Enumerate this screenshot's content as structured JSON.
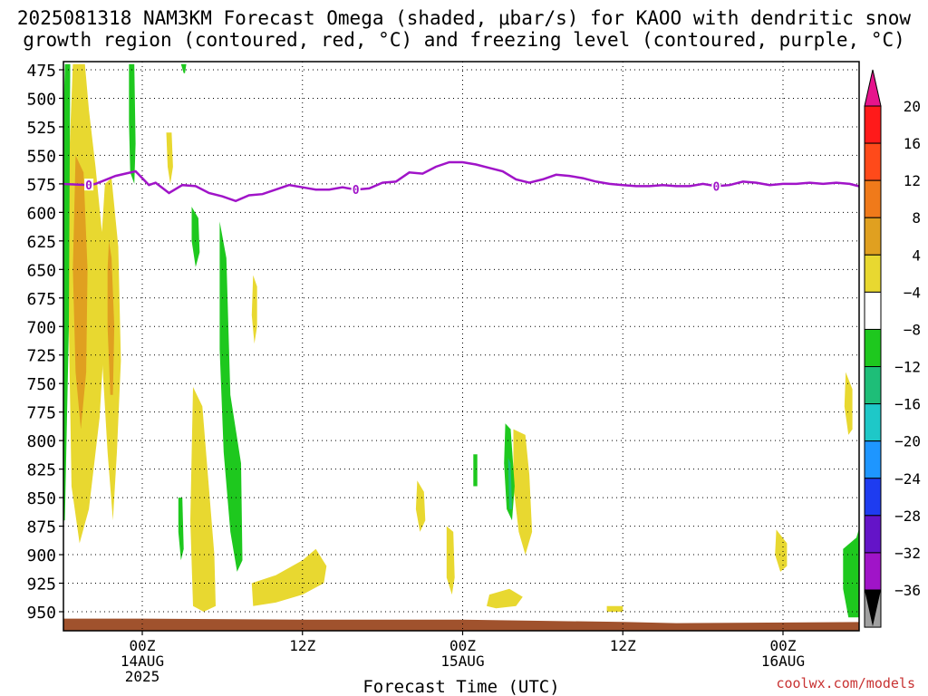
{
  "title_line1": "2025081318 NAM3KM Forecast Omega (shaded, μbar/s) for KAOO with dendritic snow",
  "title_line2": "growth region (contoured, red, °C) and freezing level (contoured, purple, °C)",
  "credit": "coolwx.com/models",
  "chart_data": {
    "type": "heatmap",
    "title": "2025081318 NAM3KM Forecast Omega (shaded, μbar/s) for KAOO with dendritic snow growth region (contoured, red, °C) and freezing level (contoured, purple, °C)",
    "xlabel": "Forecast Time (UTC)",
    "ylabel": "",
    "x_range_hours": [
      -6,
      54
    ],
    "y_range_hPa": [
      470,
      965
    ],
    "y_ticks": [
      475,
      500,
      525,
      550,
      575,
      600,
      625,
      650,
      675,
      700,
      725,
      750,
      775,
      800,
      825,
      850,
      875,
      900,
      925,
      950
    ],
    "x_ticks": [
      {
        "hour": 0,
        "lines": [
          "00Z",
          "14AUG",
          "2025"
        ]
      },
      {
        "hour": 12,
        "lines": [
          "12Z"
        ]
      },
      {
        "hour": 24,
        "lines": [
          "00Z",
          "15AUG"
        ]
      },
      {
        "hour": 36,
        "lines": [
          "12Z"
        ]
      },
      {
        "hour": 48,
        "lines": [
          "00Z",
          "16AUG"
        ]
      }
    ],
    "grid": true,
    "colorbar": {
      "labels": [
        "20",
        "16",
        "12",
        "8",
        "4",
        "−4",
        "−8",
        "−12",
        "−16",
        "−20",
        "−24",
        "−28",
        "−32",
        "−36"
      ],
      "colors": [
        "#ff1a1a",
        "#ff4a1a",
        "#f07a1a",
        "#e0a020",
        "#e8d830",
        "#ffffff",
        "#1ec81e",
        "#1ebe78",
        "#1ec8c8",
        "#1e96ff",
        "#1e3cf0",
        "#6414c8",
        "#a014c8",
        "#a0a0a0"
      ],
      "top_arrow_color": "#e6148c",
      "bottom_arrow_color": "#000000"
    },
    "freezing_level": {
      "color": "#a014c8",
      "contour_label": "0",
      "points": [
        [
          -6,
          575
        ],
        [
          -4,
          576
        ],
        [
          -3.5,
          575
        ],
        [
          -2,
          568
        ],
        [
          -0.5,
          564
        ],
        [
          0,
          570
        ],
        [
          0.5,
          576
        ],
        [
          1,
          574
        ],
        [
          2,
          583
        ],
        [
          3,
          576
        ],
        [
          4,
          577
        ],
        [
          5,
          583
        ],
        [
          6,
          586
        ],
        [
          7,
          590
        ],
        [
          8,
          585
        ],
        [
          9,
          584
        ],
        [
          10,
          580
        ],
        [
          11,
          576
        ],
        [
          12,
          578
        ],
        [
          13,
          580
        ],
        [
          14,
          580
        ],
        [
          15,
          578
        ],
        [
          16,
          580
        ],
        [
          17,
          579
        ],
        [
          18,
          574
        ],
        [
          19,
          573
        ],
        [
          20,
          565
        ],
        [
          21,
          566
        ],
        [
          22,
          560
        ],
        [
          23,
          556
        ],
        [
          24,
          556
        ],
        [
          25,
          558
        ],
        [
          26,
          561
        ],
        [
          27,
          564
        ],
        [
          28,
          571
        ],
        [
          29,
          574
        ],
        [
          30,
          571
        ],
        [
          31,
          567
        ],
        [
          32,
          568
        ],
        [
          33,
          570
        ],
        [
          34,
          573
        ],
        [
          35,
          575
        ],
        [
          36,
          576
        ],
        [
          37,
          577
        ],
        [
          38,
          577
        ],
        [
          39,
          576
        ],
        [
          40,
          577
        ],
        [
          41,
          577
        ],
        [
          42,
          575
        ],
        [
          43,
          577
        ],
        [
          44,
          576
        ],
        [
          45,
          573
        ],
        [
          46,
          574
        ],
        [
          47,
          576
        ],
        [
          48,
          575
        ],
        [
          49,
          575
        ],
        [
          50,
          574
        ],
        [
          51,
          575
        ],
        [
          52,
          574
        ],
        [
          53,
          575
        ],
        [
          54,
          578
        ]
      ]
    },
    "ground_color": "#a0522d",
    "ground_hPa": [
      [
        -6,
        956
      ],
      [
        0,
        956
      ],
      [
        12,
        957
      ],
      [
        24,
        957
      ],
      [
        36,
        959
      ],
      [
        40,
        960
      ],
      [
        54,
        959
      ]
    ],
    "omega_regions": [
      {
        "band": "4 to 8",
        "color": "#e8d830",
        "points": [
          [
            -5.2,
            470
          ],
          [
            -4.3,
            470
          ],
          [
            -4,
            510
          ],
          [
            -3.5,
            560
          ],
          [
            -3,
            620
          ],
          [
            -2.8,
            700
          ],
          [
            -3.2,
            780
          ],
          [
            -4,
            860
          ],
          [
            -4.7,
            890
          ],
          [
            -5.3,
            840
          ],
          [
            -5.5,
            700
          ],
          [
            -5.5,
            560
          ]
        ]
      },
      {
        "band": "8 to 12",
        "color": "#e0a020",
        "points": [
          [
            -5,
            550
          ],
          [
            -4.4,
            565
          ],
          [
            -4.1,
            650
          ],
          [
            -4.2,
            740
          ],
          [
            -4.6,
            790
          ],
          [
            -5,
            740
          ],
          [
            -5.2,
            650
          ]
        ]
      },
      {
        "band": "4 to 8",
        "color": "#e8d830",
        "points": [
          [
            -2.8,
            575
          ],
          [
            -2.3,
            570
          ],
          [
            -1.8,
            630
          ],
          [
            -1.6,
            730
          ],
          [
            -1.9,
            810
          ],
          [
            -2.2,
            870
          ],
          [
            -2.6,
            810
          ],
          [
            -3,
            730
          ],
          [
            -3.2,
            650
          ]
        ]
      },
      {
        "band": "8 to 12",
        "color": "#e0a020",
        "points": [
          [
            -2.5,
            625
          ],
          [
            -2.3,
            640
          ],
          [
            -2.1,
            700
          ],
          [
            -2.2,
            760
          ],
          [
            -2.4,
            760
          ],
          [
            -2.6,
            700
          ],
          [
            -2.6,
            650
          ]
        ]
      },
      {
        "band": "4 to 8",
        "color": "#e8d830",
        "points": [
          [
            1.8,
            530
          ],
          [
            2.2,
            530
          ],
          [
            2.3,
            560
          ],
          [
            2.1,
            575
          ],
          [
            1.9,
            560
          ]
        ]
      },
      {
        "band": "4 to 8",
        "color": "#e8d830",
        "points": [
          [
            3.8,
            753
          ],
          [
            4.5,
            770
          ],
          [
            5.4,
            900
          ],
          [
            5.5,
            945
          ],
          [
            4.6,
            950
          ],
          [
            3.8,
            945
          ],
          [
            3.6,
            870
          ]
        ]
      },
      {
        "band": "4 to 8",
        "color": "#e8d830",
        "points": [
          [
            8.3,
            655
          ],
          [
            8.6,
            665
          ],
          [
            8.6,
            700
          ],
          [
            8.4,
            715
          ],
          [
            8.2,
            690
          ]
        ]
      },
      {
        "band": "4 to 8",
        "color": "#e8d830",
        "points": [
          [
            8.2,
            925
          ],
          [
            10,
            918
          ],
          [
            12,
            905
          ],
          [
            13,
            895
          ],
          [
            13.8,
            910
          ],
          [
            13.6,
            925
          ],
          [
            12,
            935
          ],
          [
            10,
            942
          ],
          [
            8.3,
            945
          ]
        ]
      },
      {
        "band": "4 to 8",
        "color": "#e8d830",
        "points": [
          [
            20.6,
            835
          ],
          [
            21.1,
            845
          ],
          [
            21.2,
            870
          ],
          [
            20.8,
            880
          ],
          [
            20.5,
            860
          ]
        ]
      },
      {
        "band": "4 to 8",
        "color": "#e8d830",
        "points": [
          [
            22.8,
            875
          ],
          [
            23.3,
            880
          ],
          [
            23.4,
            920
          ],
          [
            23.2,
            935
          ],
          [
            22.8,
            920
          ]
        ]
      },
      {
        "band": "4 to 8",
        "color": "#e8d830",
        "points": [
          [
            27.8,
            790
          ],
          [
            28.7,
            795
          ],
          [
            29,
            830
          ],
          [
            29.2,
            880
          ],
          [
            28.7,
            900
          ],
          [
            28.2,
            880
          ],
          [
            27.8,
            840
          ]
        ]
      },
      {
        "band": "4 to 8",
        "color": "#e8d830",
        "points": [
          [
            26,
            935
          ],
          [
            27.5,
            930
          ],
          [
            28.5,
            937
          ],
          [
            28,
            945
          ],
          [
            26.5,
            947
          ],
          [
            25.8,
            945
          ]
        ]
      },
      {
        "band": "4 to 8",
        "color": "#e8d830",
        "points": [
          [
            34.8,
            945
          ],
          [
            36,
            945
          ],
          [
            36,
            950
          ],
          [
            34.8,
            950
          ]
        ]
      },
      {
        "band": "4 to 8",
        "color": "#e8d830",
        "points": [
          [
            47.5,
            878
          ],
          [
            48.3,
            890
          ],
          [
            48.3,
            910
          ],
          [
            47.8,
            915
          ],
          [
            47.4,
            900
          ]
        ]
      },
      {
        "band": "4 to 8",
        "color": "#e8d830",
        "points": [
          [
            52.7,
            740
          ],
          [
            53.2,
            755
          ],
          [
            53.2,
            790
          ],
          [
            52.9,
            795
          ],
          [
            52.6,
            770
          ]
        ]
      },
      {
        "band": "-8 to -4",
        "color": "#1ec81e",
        "points": [
          [
            -5.8,
            470
          ],
          [
            -5.4,
            470
          ],
          [
            -5.5,
            700
          ],
          [
            -5.8,
            870
          ],
          [
            -6,
            870
          ],
          [
            -6,
            560
          ]
        ]
      },
      {
        "band": "-8 to -4",
        "color": "#1ec81e",
        "points": [
          [
            -1,
            470
          ],
          [
            -0.6,
            470
          ],
          [
            -0.5,
            540
          ],
          [
            -0.6,
            575
          ],
          [
            -0.9,
            565
          ],
          [
            -1,
            520
          ]
        ]
      },
      {
        "band": "-8 to -4",
        "color": "#1ec81e",
        "points": [
          [
            2.9,
            470
          ],
          [
            3.3,
            470
          ],
          [
            3.2,
            478
          ],
          [
            3.1,
            478
          ]
        ]
      },
      {
        "band": "-8 to -4",
        "color": "#1ec81e",
        "points": [
          [
            3.7,
            595
          ],
          [
            4.2,
            605
          ],
          [
            4.3,
            635
          ],
          [
            4,
            648
          ],
          [
            3.7,
            625
          ]
        ]
      },
      {
        "band": "-8 to -4",
        "color": "#1ec81e",
        "points": [
          [
            5.8,
            608
          ],
          [
            6.3,
            640
          ],
          [
            6.6,
            760
          ],
          [
            7.4,
            820
          ],
          [
            7.5,
            905
          ],
          [
            7.1,
            915
          ],
          [
            6.6,
            880
          ],
          [
            6.1,
            810
          ],
          [
            5.8,
            720
          ]
        ]
      },
      {
        "band": "-8 to -4",
        "color": "#1ec81e",
        "points": [
          [
            2.7,
            850
          ],
          [
            3,
            850
          ],
          [
            3.1,
            895
          ],
          [
            2.9,
            905
          ],
          [
            2.7,
            880
          ]
        ]
      },
      {
        "band": "-8 to -4",
        "color": "#1ec81e",
        "points": [
          [
            27.2,
            785
          ],
          [
            27.6,
            790
          ],
          [
            27.9,
            840
          ],
          [
            27.7,
            870
          ],
          [
            27.3,
            860
          ],
          [
            27.1,
            820
          ]
        ]
      },
      {
        "band": "-12 to -8",
        "color": "#1ebe78",
        "points": [
          [
            27.4,
            815
          ],
          [
            27.6,
            820
          ],
          [
            27.7,
            860
          ],
          [
            27.5,
            860
          ]
        ]
      },
      {
        "band": "-8 to -4",
        "color": "#1ec81e",
        "points": [
          [
            24.8,
            812
          ],
          [
            25.1,
            812
          ],
          [
            25.1,
            840
          ],
          [
            24.8,
            840
          ]
        ]
      },
      {
        "band": "-8 to -4",
        "color": "#1ec81e",
        "points": [
          [
            52.5,
            895
          ],
          [
            53.5,
            885
          ],
          [
            54,
            865
          ],
          [
            54,
            955
          ],
          [
            52.9,
            955
          ],
          [
            52.5,
            930
          ]
        ]
      }
    ]
  }
}
